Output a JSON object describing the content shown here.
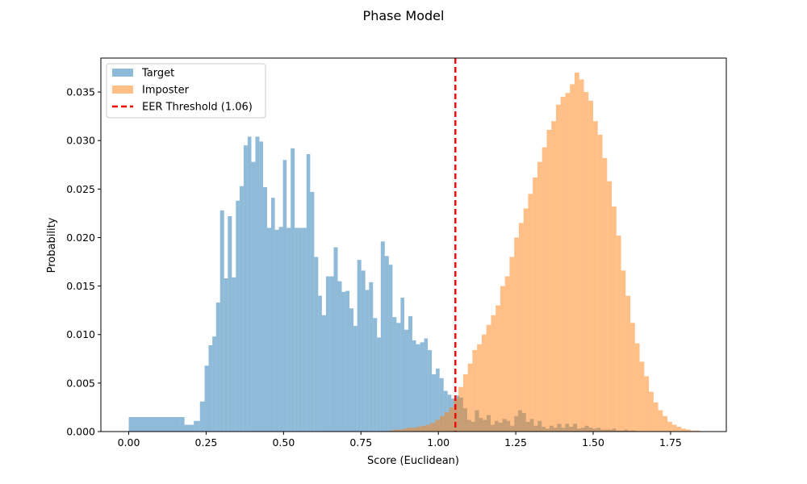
{
  "chart_data": {
    "type": "histogram",
    "title": "Phase Model",
    "xlabel": "Score (Euclidean)",
    "ylabel": "Probability",
    "xlim": [
      -0.09,
      1.93
    ],
    "ylim": [
      0,
      0.0385
    ],
    "xticks": [
      0.0,
      0.25,
      0.5,
      0.75,
      1.0,
      1.25,
      1.5,
      1.75
    ],
    "xtick_labels": [
      "0.00",
      "0.25",
      "0.50",
      "0.75",
      "1.00",
      "1.25",
      "1.50",
      "1.75"
    ],
    "yticks": [
      0.0,
      0.005,
      0.01,
      0.015,
      0.02,
      0.025,
      0.03,
      0.035
    ],
    "ytick_labels": [
      "0.000",
      "0.005",
      "0.010",
      "0.015",
      "0.020",
      "0.025",
      "0.030",
      "0.035"
    ],
    "grid": false,
    "legend_position": "upper-left",
    "threshold": {
      "label": "EER Threshold (1.06)",
      "value": 1.055,
      "color": "#ff0000",
      "style": "dashed"
    },
    "series": [
      {
        "name": "Target",
        "color": "#1f77b4",
        "alpha": 0.5,
        "bins": [
          [
            0.0,
            0.0015
          ],
          [
            0.167,
            0.0015
          ],
          [
            0.18,
            0.0007
          ],
          [
            0.21,
            0.0011
          ],
          [
            0.23,
            0.0031
          ],
          [
            0.245,
            0.0068
          ],
          [
            0.258,
            0.0089
          ],
          [
            0.27,
            0.0098
          ],
          [
            0.282,
            0.0133
          ],
          [
            0.295,
            0.0228
          ],
          [
            0.308,
            0.0158
          ],
          [
            0.32,
            0.0222
          ],
          [
            0.333,
            0.0159
          ],
          [
            0.346,
            0.0238
          ],
          [
            0.358,
            0.0253
          ],
          [
            0.371,
            0.0295
          ],
          [
            0.384,
            0.0304
          ],
          [
            0.396,
            0.0278
          ],
          [
            0.409,
            0.0304
          ],
          [
            0.422,
            0.0299
          ],
          [
            0.434,
            0.0252
          ],
          [
            0.447,
            0.021
          ],
          [
            0.46,
            0.0241
          ],
          [
            0.472,
            0.0208
          ],
          [
            0.485,
            0.0211
          ],
          [
            0.498,
            0.028
          ],
          [
            0.51,
            0.021
          ],
          [
            0.523,
            0.0292
          ],
          [
            0.536,
            0.021
          ],
          [
            0.548,
            0.021
          ],
          [
            0.561,
            0.021
          ],
          [
            0.574,
            0.0286
          ],
          [
            0.586,
            0.0247
          ],
          [
            0.599,
            0.018
          ],
          [
            0.612,
            0.014
          ],
          [
            0.624,
            0.012
          ],
          [
            0.637,
            0.016
          ],
          [
            0.65,
            0.016
          ],
          [
            0.662,
            0.019
          ],
          [
            0.675,
            0.0155
          ],
          [
            0.688,
            0.0144
          ],
          [
            0.7,
            0.0145
          ],
          [
            0.713,
            0.0127
          ],
          [
            0.726,
            0.0109
          ],
          [
            0.738,
            0.0177
          ],
          [
            0.751,
            0.0166
          ],
          [
            0.764,
            0.0146
          ],
          [
            0.776,
            0.0154
          ],
          [
            0.789,
            0.0117
          ],
          [
            0.802,
            0.0097
          ],
          [
            0.814,
            0.0196
          ],
          [
            0.827,
            0.0181
          ],
          [
            0.84,
            0.0172
          ],
          [
            0.852,
            0.0118
          ],
          [
            0.865,
            0.0112
          ],
          [
            0.878,
            0.0138
          ],
          [
            0.89,
            0.0105
          ],
          [
            0.903,
            0.0119
          ],
          [
            0.916,
            0.0094
          ],
          [
            0.928,
            0.009
          ],
          [
            0.941,
            0.0092
          ],
          [
            0.954,
            0.0096
          ],
          [
            0.966,
            0.0084
          ],
          [
            0.979,
            0.0059
          ],
          [
            0.992,
            0.0065
          ],
          [
            1.004,
            0.0055
          ],
          [
            1.017,
            0.0042
          ],
          [
            1.03,
            0.0038
          ],
          [
            1.042,
            0.0034
          ],
          [
            1.055,
            0.0037
          ],
          [
            1.068,
            0.0035
          ],
          [
            1.08,
            0.0024
          ],
          [
            1.093,
            0.0012
          ],
          [
            1.106,
            0.001
          ],
          [
            1.118,
            0.0022
          ],
          [
            1.131,
            0.0014
          ],
          [
            1.144,
            0.0012
          ],
          [
            1.156,
            0.0017
          ],
          [
            1.169,
            0.0007
          ],
          [
            1.182,
            0.0011
          ],
          [
            1.194,
            0.0009
          ],
          [
            1.207,
            0.0013
          ],
          [
            1.22,
            0.0011
          ],
          [
            1.232,
            0.0006
          ],
          [
            1.245,
            0.0016
          ],
          [
            1.258,
            0.0022
          ],
          [
            1.27,
            0.0019
          ],
          [
            1.283,
            0.001
          ],
          [
            1.296,
            0.0013
          ],
          [
            1.308,
            0.0006
          ],
          [
            1.321,
            0.0011
          ],
          [
            1.334,
            0.0005
          ],
          [
            1.346,
            0.0003
          ],
          [
            1.359,
            0.0006
          ],
          [
            1.372,
            0.0004
          ],
          [
            1.384,
            0.0008
          ],
          [
            1.397,
            0.0004
          ],
          [
            1.41,
            0.0008
          ],
          [
            1.422,
            0.0005
          ],
          [
            1.435,
            0.0008
          ],
          [
            1.448,
            0.0003
          ],
          [
            1.46,
            0.0004
          ],
          [
            1.473,
            0.0006
          ],
          [
            1.486,
            0.0004
          ],
          [
            1.498,
            0.0003
          ],
          [
            1.511,
            0.0004
          ],
          [
            1.524,
            0.0002
          ],
          [
            1.536,
            0.0002
          ],
          [
            1.549,
            0.0002
          ],
          [
            1.562,
            0.0003
          ],
          [
            1.574,
            0.0001
          ],
          [
            1.587,
            0.0001
          ],
          [
            1.6,
            0.0002
          ],
          [
            1.612,
            0.0001
          ],
          [
            1.625,
            0.0001
          ]
        ]
      },
      {
        "name": "Imposter",
        "color": "#ff7f0e",
        "alpha": 0.5,
        "bins": [
          [
            0.84,
            0.0001
          ],
          [
            0.855,
            0.0002
          ],
          [
            0.87,
            0.0002
          ],
          [
            0.885,
            0.0003
          ],
          [
            0.9,
            0.0004
          ],
          [
            0.915,
            0.0004
          ],
          [
            0.93,
            0.0005
          ],
          [
            0.945,
            0.0006
          ],
          [
            0.96,
            0.0007
          ],
          [
            0.975,
            0.0009
          ],
          [
            0.99,
            0.0012
          ],
          [
            1.005,
            0.0016
          ],
          [
            1.02,
            0.002
          ],
          [
            1.035,
            0.0025
          ],
          [
            1.05,
            0.0034
          ],
          [
            1.065,
            0.0046
          ],
          [
            1.08,
            0.0059
          ],
          [
            1.095,
            0.007
          ],
          [
            1.11,
            0.0084
          ],
          [
            1.125,
            0.009
          ],
          [
            1.14,
            0.01
          ],
          [
            1.155,
            0.011
          ],
          [
            1.17,
            0.012
          ],
          [
            1.185,
            0.013
          ],
          [
            1.2,
            0.015
          ],
          [
            1.215,
            0.016
          ],
          [
            1.23,
            0.018
          ],
          [
            1.245,
            0.02
          ],
          [
            1.26,
            0.0215
          ],
          [
            1.275,
            0.023
          ],
          [
            1.29,
            0.0245
          ],
          [
            1.305,
            0.0262
          ],
          [
            1.32,
            0.0278
          ],
          [
            1.335,
            0.0293
          ],
          [
            1.35,
            0.0311
          ],
          [
            1.365,
            0.032
          ],
          [
            1.38,
            0.0337
          ],
          [
            1.395,
            0.0345
          ],
          [
            1.41,
            0.0349
          ],
          [
            1.425,
            0.0358
          ],
          [
            1.44,
            0.037
          ],
          [
            1.455,
            0.0363
          ],
          [
            1.47,
            0.035
          ],
          [
            1.485,
            0.0341
          ],
          [
            1.5,
            0.032
          ],
          [
            1.515,
            0.0306
          ],
          [
            1.53,
            0.0282
          ],
          [
            1.545,
            0.0258
          ],
          [
            1.56,
            0.0232
          ],
          [
            1.575,
            0.0202
          ],
          [
            1.59,
            0.0166
          ],
          [
            1.605,
            0.014
          ],
          [
            1.62,
            0.0112
          ],
          [
            1.635,
            0.0091
          ],
          [
            1.65,
            0.0072
          ],
          [
            1.665,
            0.0057
          ],
          [
            1.68,
            0.0041
          ],
          [
            1.695,
            0.003
          ],
          [
            1.71,
            0.0022
          ],
          [
            1.725,
            0.0016
          ],
          [
            1.74,
            0.001
          ],
          [
            1.755,
            0.0007
          ],
          [
            1.77,
            0.0005
          ],
          [
            1.785,
            0.0003
          ],
          [
            1.8,
            0.0002
          ],
          [
            1.815,
            0.0001
          ],
          [
            1.83,
            0.0001
          ]
        ]
      }
    ]
  }
}
